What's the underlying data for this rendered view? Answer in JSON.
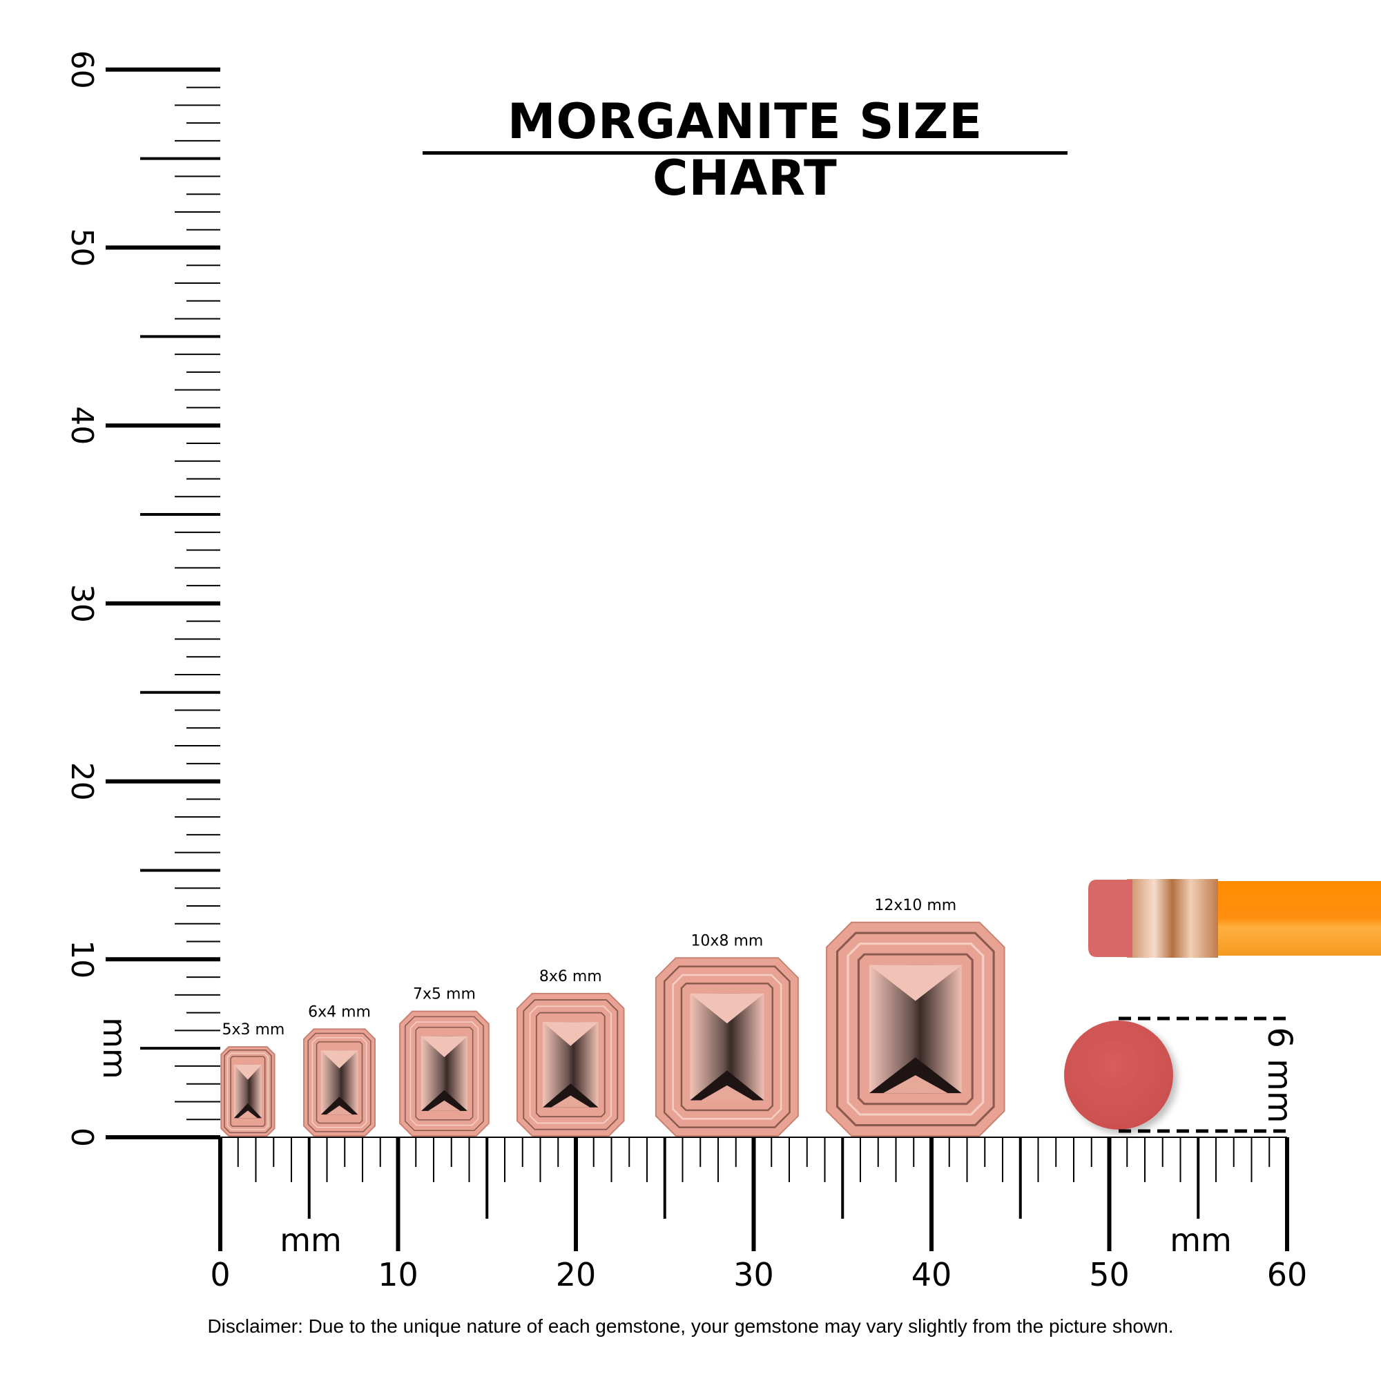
{
  "title": "MORGANITE SIZE CHART",
  "unit_label": "mm",
  "vertical_ruler": {
    "ticks": [
      "0",
      "10",
      "20",
      "30",
      "40",
      "50",
      "60"
    ],
    "unit": "mm"
  },
  "horizontal_ruler": {
    "ticks": [
      "0",
      "10",
      "20",
      "30",
      "40",
      "50",
      "60"
    ],
    "units": [
      "mm",
      "mm"
    ]
  },
  "gemstones": [
    {
      "label": "5x3 mm",
      "length_mm": 5,
      "width_mm": 3
    },
    {
      "label": "6x4 mm",
      "length_mm": 6,
      "width_mm": 4
    },
    {
      "label": "7x5 mm",
      "length_mm": 7,
      "width_mm": 5
    },
    {
      "label": "8x6 mm",
      "length_mm": 8,
      "width_mm": 6
    },
    {
      "label": "10x8 mm",
      "length_mm": 10,
      "width_mm": 8
    },
    {
      "label": "12x10 mm",
      "length_mm": 12,
      "width_mm": 10
    }
  ],
  "eraser_reference": {
    "label": "6 mm",
    "size_mm": 6
  },
  "colors": {
    "gem": "#e8a394",
    "gem_dark": "#3a2a28",
    "eraser": "#d45a5a",
    "pencil": "#ff9a1a",
    "ferrule": "#d9a27a"
  },
  "disclaimer": "Disclaimer: Due to the unique nature of each gemstone, your gemstone may vary slightly from the picture shown."
}
